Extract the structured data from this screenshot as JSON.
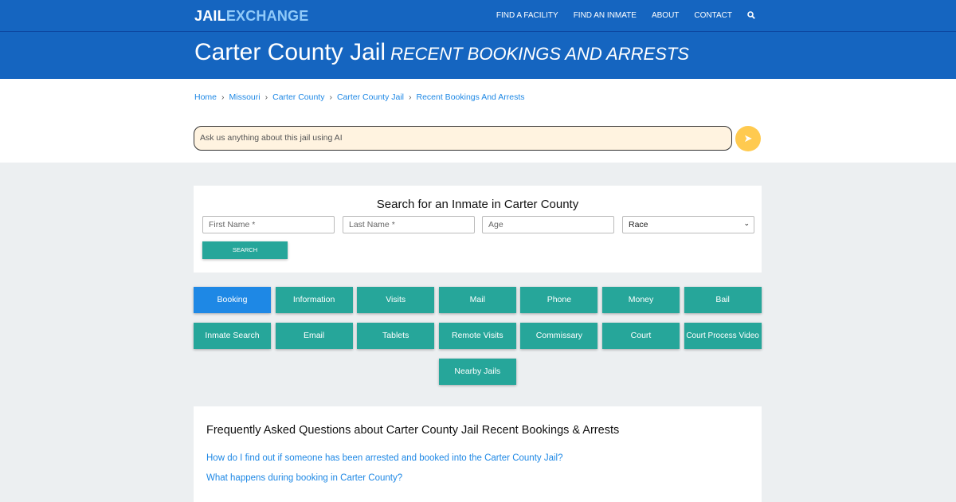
{
  "header": {
    "logo_a": "JAIL",
    "logo_b": "EXCHANGE",
    "nav": [
      "FIND A FACILITY",
      "FIND AN INMATE",
      "ABOUT",
      "CONTACT"
    ],
    "search_icon": "search-icon"
  },
  "title": {
    "main": "Carter County Jail",
    "sub": "RECENT BOOKINGS AND ARRESTS"
  },
  "breadcrumb": [
    "Home",
    "Missouri",
    "Carter County",
    "Carter County Jail",
    "Recent Bookings And Arrests"
  ],
  "ai": {
    "placeholder": "Ask us anything about this jail using AI",
    "send_icon": "paper-plane-icon"
  },
  "search": {
    "heading": "Search for an Inmate in Carter County",
    "first": "First Name *",
    "last": "Last Name *",
    "age": "Age",
    "race": "Race",
    "button": "SEARCH"
  },
  "buttons": [
    "Booking",
    "Information",
    "Visits",
    "Mail",
    "Phone",
    "Money",
    "Bail",
    "Inmate Search",
    "Email",
    "Tablets",
    "Remote Visits",
    "Commissary",
    "Court",
    "Court Process Video",
    "Nearby Jails"
  ],
  "faq": {
    "heading": "Frequently Asked Questions about Carter County Jail Recent Bookings & Arrests",
    "links": [
      "How do I find out if someone has been arrested and booked into the Carter County Jail?",
      "What happens during booking in Carter County?"
    ]
  },
  "colors": {
    "primary": "#1565c0",
    "teal": "#26a69a",
    "active": "#1e88e5",
    "send": "#ffca4f"
  }
}
